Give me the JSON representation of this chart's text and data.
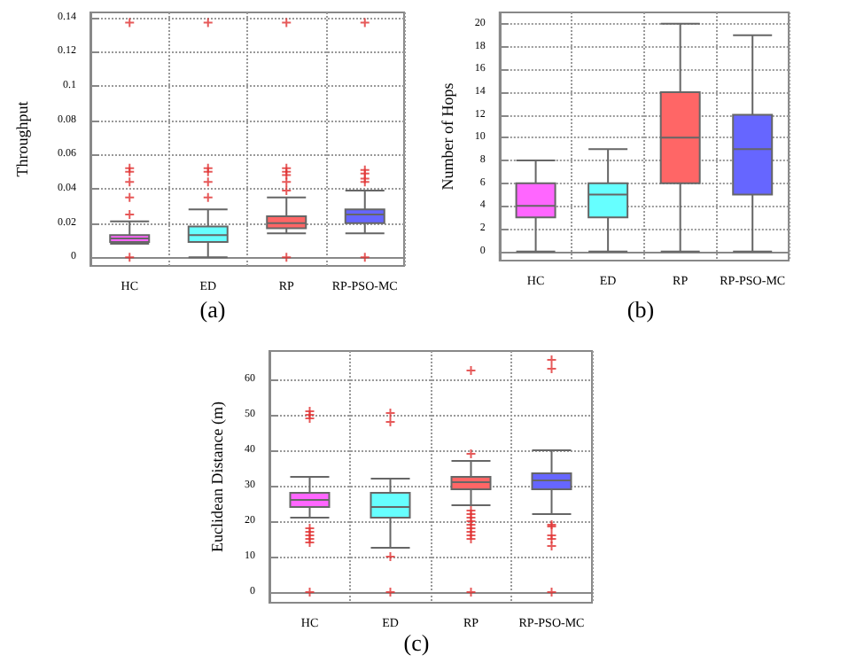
{
  "chart_data": [
    {
      "type": "box",
      "title": "(a)",
      "ylabel": "Throughput",
      "categories": [
        "HC",
        "ED",
        "RP",
        "RP-PSO-MC"
      ],
      "colors": [
        "#ff66ff",
        "#66ffff",
        "#ff6666",
        "#6666ff"
      ],
      "ylim": [
        -0.005,
        0.143
      ],
      "yticks": [
        0,
        0.02,
        0.04,
        0.06,
        0.08,
        0.1,
        0.12,
        0.14
      ],
      "grid": true,
      "boxes": [
        {
          "low": 0.008,
          "q1": 0.009,
          "median": 0.011,
          "q3": 0.013,
          "high": 0.021,
          "outliers": [
            0,
            0.025,
            0.035,
            0.044,
            0.05,
            0.052,
            0.137
          ]
        },
        {
          "low": 0,
          "q1": 0.009,
          "median": 0.013,
          "q3": 0.018,
          "high": 0.028,
          "outliers": [
            0.035,
            0.044,
            0.05,
            0.052,
            0.137
          ]
        },
        {
          "low": 0.014,
          "q1": 0.017,
          "median": 0.02,
          "q3": 0.024,
          "high": 0.035,
          "outliers": [
            0,
            0.039,
            0.044,
            0.048,
            0.05,
            0.052,
            0.137
          ]
        },
        {
          "low": 0.014,
          "q1": 0.02,
          "median": 0.025,
          "q3": 0.028,
          "high": 0.039,
          "outliers": [
            0,
            0.044,
            0.046,
            0.049,
            0.051,
            0.137
          ]
        }
      ]
    },
    {
      "type": "box",
      "title": "(b)",
      "ylabel": "Number of Hops",
      "categories": [
        "HC",
        "ED",
        "RP",
        "RP-PSO-MC"
      ],
      "colors": [
        "#ff66ff",
        "#66ffff",
        "#ff6666",
        "#6666ff"
      ],
      "ylim": [
        -0.8,
        21
      ],
      "yticks": [
        0,
        2,
        4,
        6,
        8,
        10,
        12,
        14,
        16,
        18,
        20
      ],
      "grid": true,
      "boxes": [
        {
          "low": 0,
          "q1": 3,
          "median": 4,
          "q3": 6,
          "high": 8
        },
        {
          "low": 0,
          "q1": 3,
          "median": 5,
          "q3": 6,
          "high": 9
        },
        {
          "low": 0,
          "q1": 6,
          "median": 10,
          "q3": 14,
          "high": 20
        },
        {
          "low": 0,
          "q1": 5,
          "median": 9,
          "q3": 12,
          "high": 19
        }
      ]
    },
    {
      "type": "box",
      "title": "(c)",
      "ylabel": "Euclidean Distance (m)",
      "categories": [
        "HC",
        "ED",
        "RP",
        "RP-PSO-MC"
      ],
      "colors": [
        "#ff66ff",
        "#66ffff",
        "#ff6666",
        "#6666ff"
      ],
      "ylim": [
        -3,
        68
      ],
      "yticks": [
        0,
        10,
        20,
        30,
        40,
        50,
        60
      ],
      "grid": true,
      "boxes": [
        {
          "low": 21,
          "q1": 24,
          "median": 26,
          "q3": 28,
          "high": 32.5,
          "outliers": [
            0,
            14,
            15,
            16,
            17,
            18,
            49,
            50,
            51
          ]
        },
        {
          "low": 12.5,
          "q1": 21,
          "median": 24,
          "q3": 28,
          "high": 32,
          "outliers": [
            0,
            10,
            48,
            50.5
          ]
        },
        {
          "low": 24.5,
          "q1": 29,
          "median": 31,
          "q3": 32.5,
          "high": 37,
          "outliers": [
            0,
            15,
            16,
            17,
            18,
            19,
            20,
            21,
            22,
            23,
            39,
            62.5
          ]
        },
        {
          "low": 22,
          "q1": 29,
          "median": 31.5,
          "q3": 33.5,
          "high": 40,
          "outliers": [
            0,
            13,
            15,
            16,
            18.5,
            19,
            63,
            65.5
          ]
        }
      ]
    }
  ]
}
